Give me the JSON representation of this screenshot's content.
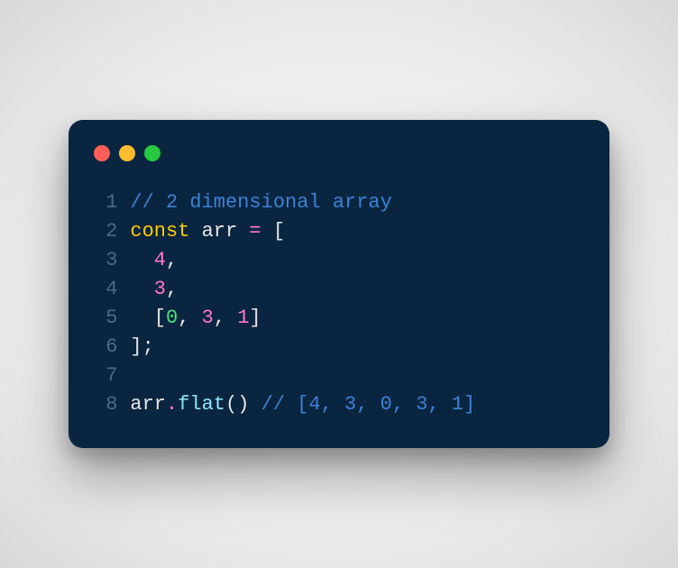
{
  "window": {
    "background": "#0a2540",
    "border_radius": 16,
    "dots": [
      {
        "name": "close",
        "color": "#ff5f56"
      },
      {
        "name": "minimize",
        "color": "#ffbd2e"
      },
      {
        "name": "zoom",
        "color": "#27c93f"
      }
    ]
  },
  "syntax_colors": {
    "line_number": "#4a6a8a",
    "comment": "#3b82d6",
    "keyword": "#ffcc00",
    "default": "#e6e6e6",
    "operator": "#ff79c6",
    "bracket": "#e6e6e6",
    "number": "#ff79c6",
    "number_alt": "#4ade80",
    "method": "#8be9fd"
  },
  "code": {
    "font_size": 22,
    "lines": [
      {
        "n": "1",
        "tokens": [
          {
            "text": "// 2 dimensional array",
            "color": "#3b82d6"
          }
        ]
      },
      {
        "n": "2",
        "tokens": [
          {
            "text": "const",
            "color": "#ffcc00"
          },
          {
            "text": " arr ",
            "color": "#e6e6e6"
          },
          {
            "text": "=",
            "color": "#ff79c6"
          },
          {
            "text": " [",
            "color": "#e6e6e6"
          }
        ]
      },
      {
        "n": "3",
        "tokens": [
          {
            "text": "  ",
            "color": "#e6e6e6"
          },
          {
            "text": "4",
            "color": "#ff79c6"
          },
          {
            "text": ",",
            "color": "#e6e6e6"
          }
        ]
      },
      {
        "n": "4",
        "tokens": [
          {
            "text": "  ",
            "color": "#e6e6e6"
          },
          {
            "text": "3",
            "color": "#ff79c6"
          },
          {
            "text": ",",
            "color": "#e6e6e6"
          }
        ]
      },
      {
        "n": "5",
        "tokens": [
          {
            "text": "  [",
            "color": "#e6e6e6"
          },
          {
            "text": "0",
            "color": "#4ade80"
          },
          {
            "text": ", ",
            "color": "#e6e6e6"
          },
          {
            "text": "3",
            "color": "#ff79c6"
          },
          {
            "text": ", ",
            "color": "#e6e6e6"
          },
          {
            "text": "1",
            "color": "#ff79c6"
          },
          {
            "text": "]",
            "color": "#e6e6e6"
          }
        ]
      },
      {
        "n": "6",
        "tokens": [
          {
            "text": "];",
            "color": "#e6e6e6"
          }
        ]
      },
      {
        "n": "7",
        "tokens": []
      },
      {
        "n": "8",
        "tokens": [
          {
            "text": "arr",
            "color": "#e6e6e6"
          },
          {
            "text": ".",
            "color": "#ff79c6"
          },
          {
            "text": "flat",
            "color": "#8be9fd"
          },
          {
            "text": "() ",
            "color": "#e6e6e6"
          },
          {
            "text": "// [4, 3, 0, 3, 1]",
            "color": "#3b82d6"
          }
        ]
      }
    ]
  }
}
